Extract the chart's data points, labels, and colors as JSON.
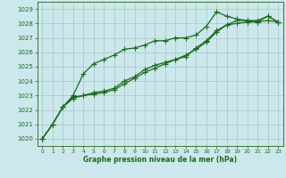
{
  "title": "Graphe pression niveau de la mer (hPa)",
  "bg_color": "#cce8ec",
  "grid_color": "#aacccc",
  "line_color": "#1a6b1a",
  "xlim": [
    -0.5,
    23.5
  ],
  "ylim": [
    1019.5,
    1029.5
  ],
  "yticks": [
    1020,
    1021,
    1022,
    1023,
    1024,
    1025,
    1026,
    1027,
    1028,
    1029
  ],
  "xticks": [
    0,
    1,
    2,
    3,
    4,
    5,
    6,
    7,
    8,
    9,
    10,
    11,
    12,
    13,
    14,
    15,
    16,
    17,
    18,
    19,
    20,
    21,
    22,
    23
  ],
  "series": [
    {
      "y": [
        1020.0,
        1021.0,
        1022.2,
        1022.9,
        1023.0,
        1023.2,
        1023.3,
        1023.5,
        1024.0,
        1024.3,
        1024.8,
        1025.1,
        1025.3,
        1025.5,
        1025.8,
        1026.2,
        1026.7,
        1027.4,
        1027.9,
        1028.0,
        1028.1,
        1028.1,
        1028.2,
        1028.1
      ],
      "linestyle": "-",
      "marker": "+",
      "markersize": 4,
      "linewidth": 0.9
    },
    {
      "y": [
        1020.0,
        1021.0,
        1022.2,
        1023.0,
        1024.5,
        1025.2,
        1025.5,
        1025.8,
        1026.2,
        1026.3,
        1026.5,
        1026.8,
        1026.8,
        1027.0,
        1027.0,
        1027.2,
        1027.8,
        1028.8,
        1028.5,
        1028.3,
        1028.2,
        1028.2,
        1028.5,
        1028.1
      ],
      "linestyle": "-",
      "marker": "+",
      "markersize": 4,
      "linewidth": 0.9
    },
    {
      "y": [
        1020.0,
        1021.0,
        1022.2,
        1022.8,
        1023.0,
        1023.1,
        1023.2,
        1023.4,
        1023.8,
        1024.2,
        1024.6,
        1024.9,
        1025.2,
        1025.5,
        1025.7,
        1026.3,
        1026.8,
        1027.5,
        1027.9,
        1028.2,
        1028.2,
        1028.1,
        1028.5,
        1028.1
      ],
      "linestyle": "-",
      "marker": "+",
      "markersize": 4,
      "linewidth": 0.9
    }
  ]
}
